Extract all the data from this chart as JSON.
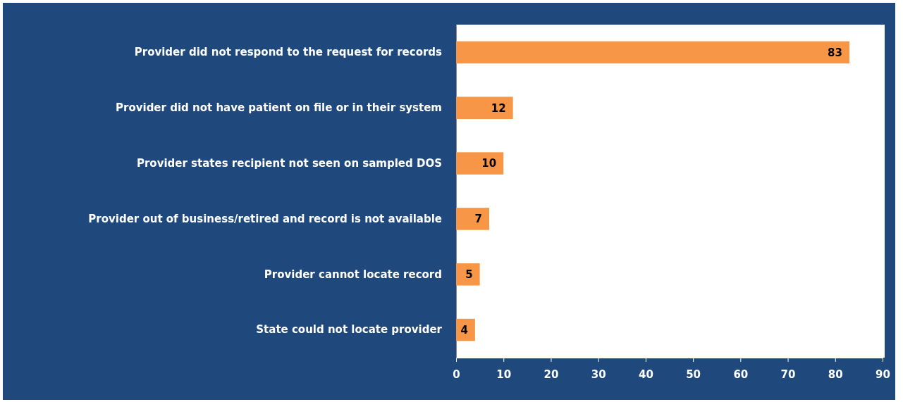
{
  "chart_data": {
    "type": "bar",
    "orientation": "horizontal",
    "categories": [
      "Provider did not respond to the request for records",
      "Provider did not have patient on file or in their system",
      "Provider states recipient not seen on sampled DOS",
      "Provider out of business/retired and record is not available",
      "Provider cannot locate record",
      "State could not locate provider"
    ],
    "values": [
      83,
      12,
      10,
      7,
      5,
      4
    ],
    "color": "#f79646",
    "xlim": [
      0,
      90
    ],
    "xticks": [
      0,
      10,
      20,
      30,
      40,
      50,
      60,
      70,
      80,
      90
    ],
    "grid": false,
    "data_labels": true
  }
}
